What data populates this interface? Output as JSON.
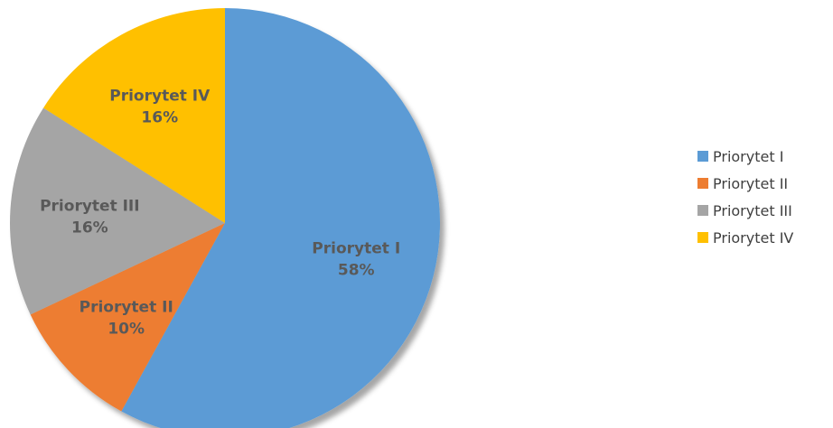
{
  "chart_data": {
    "type": "pie",
    "categories": [
      "Priorytet I",
      "Priorytet II",
      "Priorytet III",
      "Priorytet IV"
    ],
    "values": [
      58,
      10,
      16,
      16
    ],
    "value_labels": [
      "58%",
      "10%",
      "16%",
      "16%"
    ],
    "colors": [
      "#5B9BD5",
      "#ED7D31",
      "#A5A5A5",
      "#FFC000"
    ],
    "legend": {
      "position": "right",
      "entries": [
        "Priorytet I",
        "Priorytet II",
        "Priorytet III",
        "Priorytet IV"
      ]
    },
    "data_labels_shown": true
  }
}
